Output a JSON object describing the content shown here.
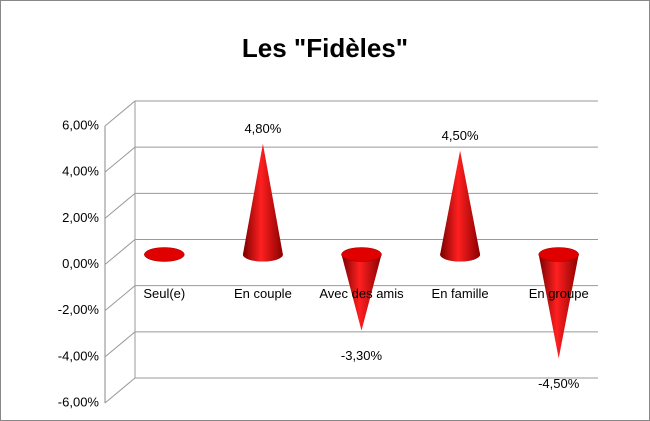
{
  "chart_data": {
    "type": "cone3d",
    "title": "Les \"Fidèles\"",
    "categories": [
      "Seul(e)",
      "En couple",
      "Avec des amis",
      "En famille",
      "En groupe"
    ],
    "values": [
      -0.3,
      4.8,
      -3.3,
      4.5,
      -4.5
    ],
    "value_labels": [
      null,
      "4,80%",
      "-3,30%",
      "4,50%",
      "-4,50%"
    ],
    "color": "#cc0000",
    "ylim": [
      -6,
      6
    ],
    "yticks": [
      {
        "value": 6,
        "label": "6,00%"
      },
      {
        "value": 4,
        "label": "4,00%"
      },
      {
        "value": 2,
        "label": "2,00%"
      },
      {
        "value": 0,
        "label": "0,00%"
      },
      {
        "value": -2,
        "label": "-2,00%"
      },
      {
        "value": -4,
        "label": "-4,00%"
      },
      {
        "value": -6,
        "label": "-6,00%"
      }
    ],
    "grid": true
  }
}
